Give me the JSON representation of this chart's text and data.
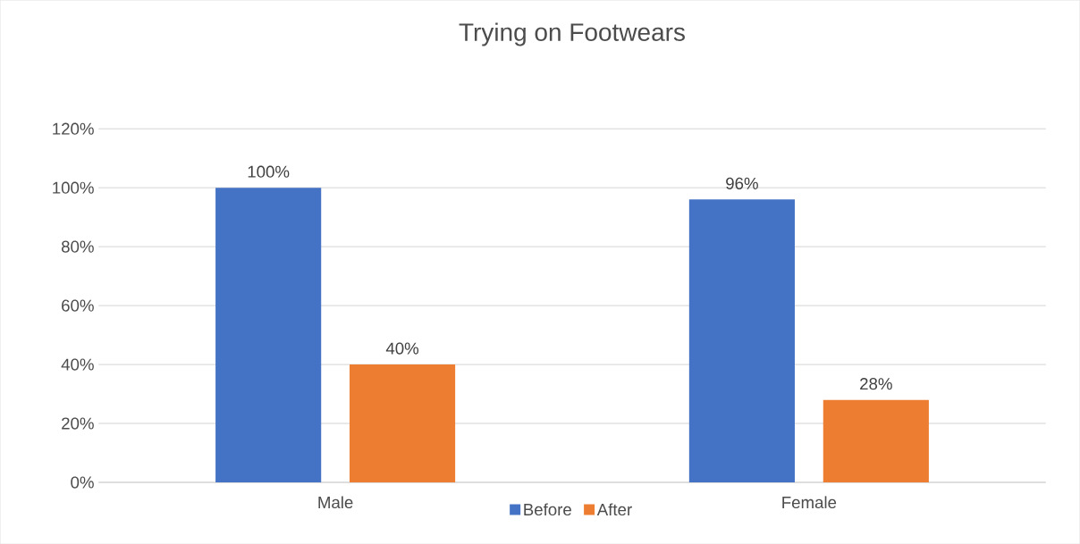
{
  "chart_data": {
    "type": "bar",
    "title": "Trying on Footwears",
    "categories": [
      "Male",
      "Female"
    ],
    "series": [
      {
        "name": "Before",
        "color": "#4472c4",
        "values": [
          100,
          96
        ],
        "value_labels": [
          "100%",
          "96%"
        ]
      },
      {
        "name": "After",
        "color": "#ed7d31",
        "values": [
          40,
          28
        ],
        "value_labels": [
          "40%",
          "28%"
        ]
      }
    ],
    "ylim": [
      0,
      120
    ],
    "yticks": [
      {
        "value": 0,
        "label": "0%"
      },
      {
        "value": 20,
        "label": "20%"
      },
      {
        "value": 40,
        "label": "40%"
      },
      {
        "value": 60,
        "label": "60%"
      },
      {
        "value": 80,
        "label": "80%"
      },
      {
        "value": 100,
        "label": "100%"
      },
      {
        "value": 120,
        "label": "120%"
      }
    ],
    "grid": "y",
    "legend": "bottom"
  }
}
